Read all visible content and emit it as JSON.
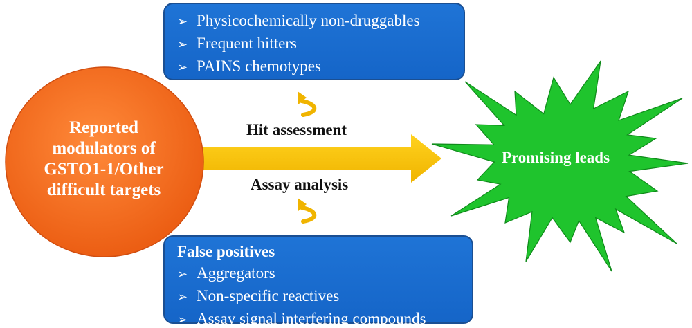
{
  "circle": {
    "lines": [
      "Reported",
      "modulators of",
      "GSTO1-1/Other",
      "difficult targets"
    ],
    "color": "#f26b1d"
  },
  "top_box": {
    "items": [
      "Physicochemically non-druggables",
      "Frequent hitters",
      "PAINS chemotypes"
    ],
    "color": "#1f6fd0"
  },
  "bottom_box": {
    "title": "False positives",
    "items": [
      "Aggregators",
      "Non-specific reactives",
      "Assay signal interfering compounds"
    ],
    "color": "#1f6fd0"
  },
  "arrow": {
    "upper_label": "Hit assessment",
    "lower_label": "Assay analysis",
    "color": "#f5c200"
  },
  "star": {
    "label": "Promising leads",
    "color": "#1fc42d"
  },
  "bullet_glyph": "➢"
}
